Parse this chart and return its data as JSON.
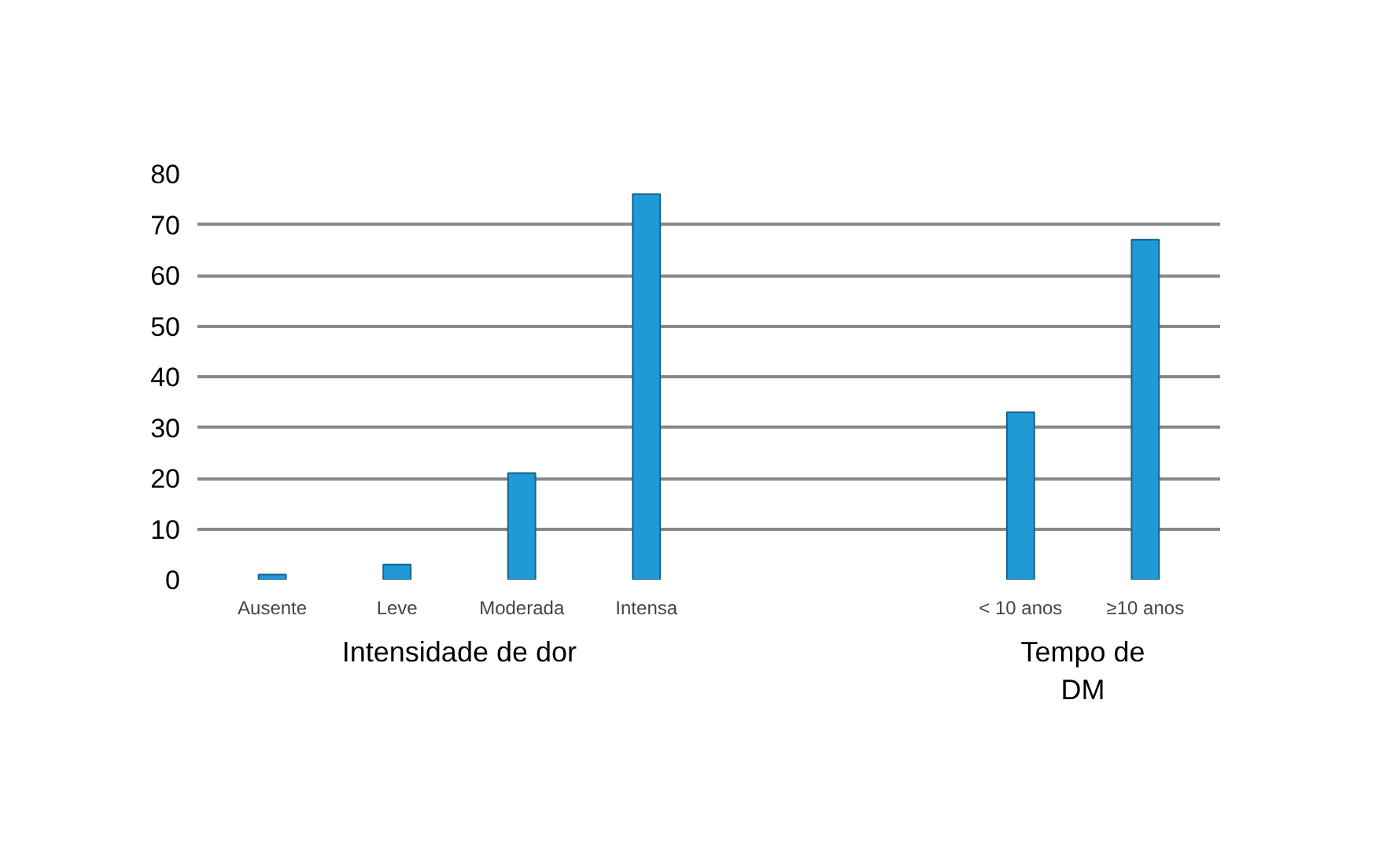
{
  "chart_data": {
    "type": "bar",
    "categories": [
      "Ausente",
      "Leve",
      "Moderada",
      "Intensa",
      null,
      null,
      "< 10 anos",
      "≥10 anos"
    ],
    "values": [
      1,
      3,
      21,
      76,
      null,
      null,
      33,
      67
    ],
    "color": "#1f9ad6",
    "ylim": [
      0,
      80
    ],
    "yticks": [
      0,
      10,
      20,
      30,
      40,
      50,
      60,
      70,
      80
    ],
    "grid": "y",
    "annotations": [
      "Intensidade de dor",
      "Tempo de\nDM"
    ]
  }
}
